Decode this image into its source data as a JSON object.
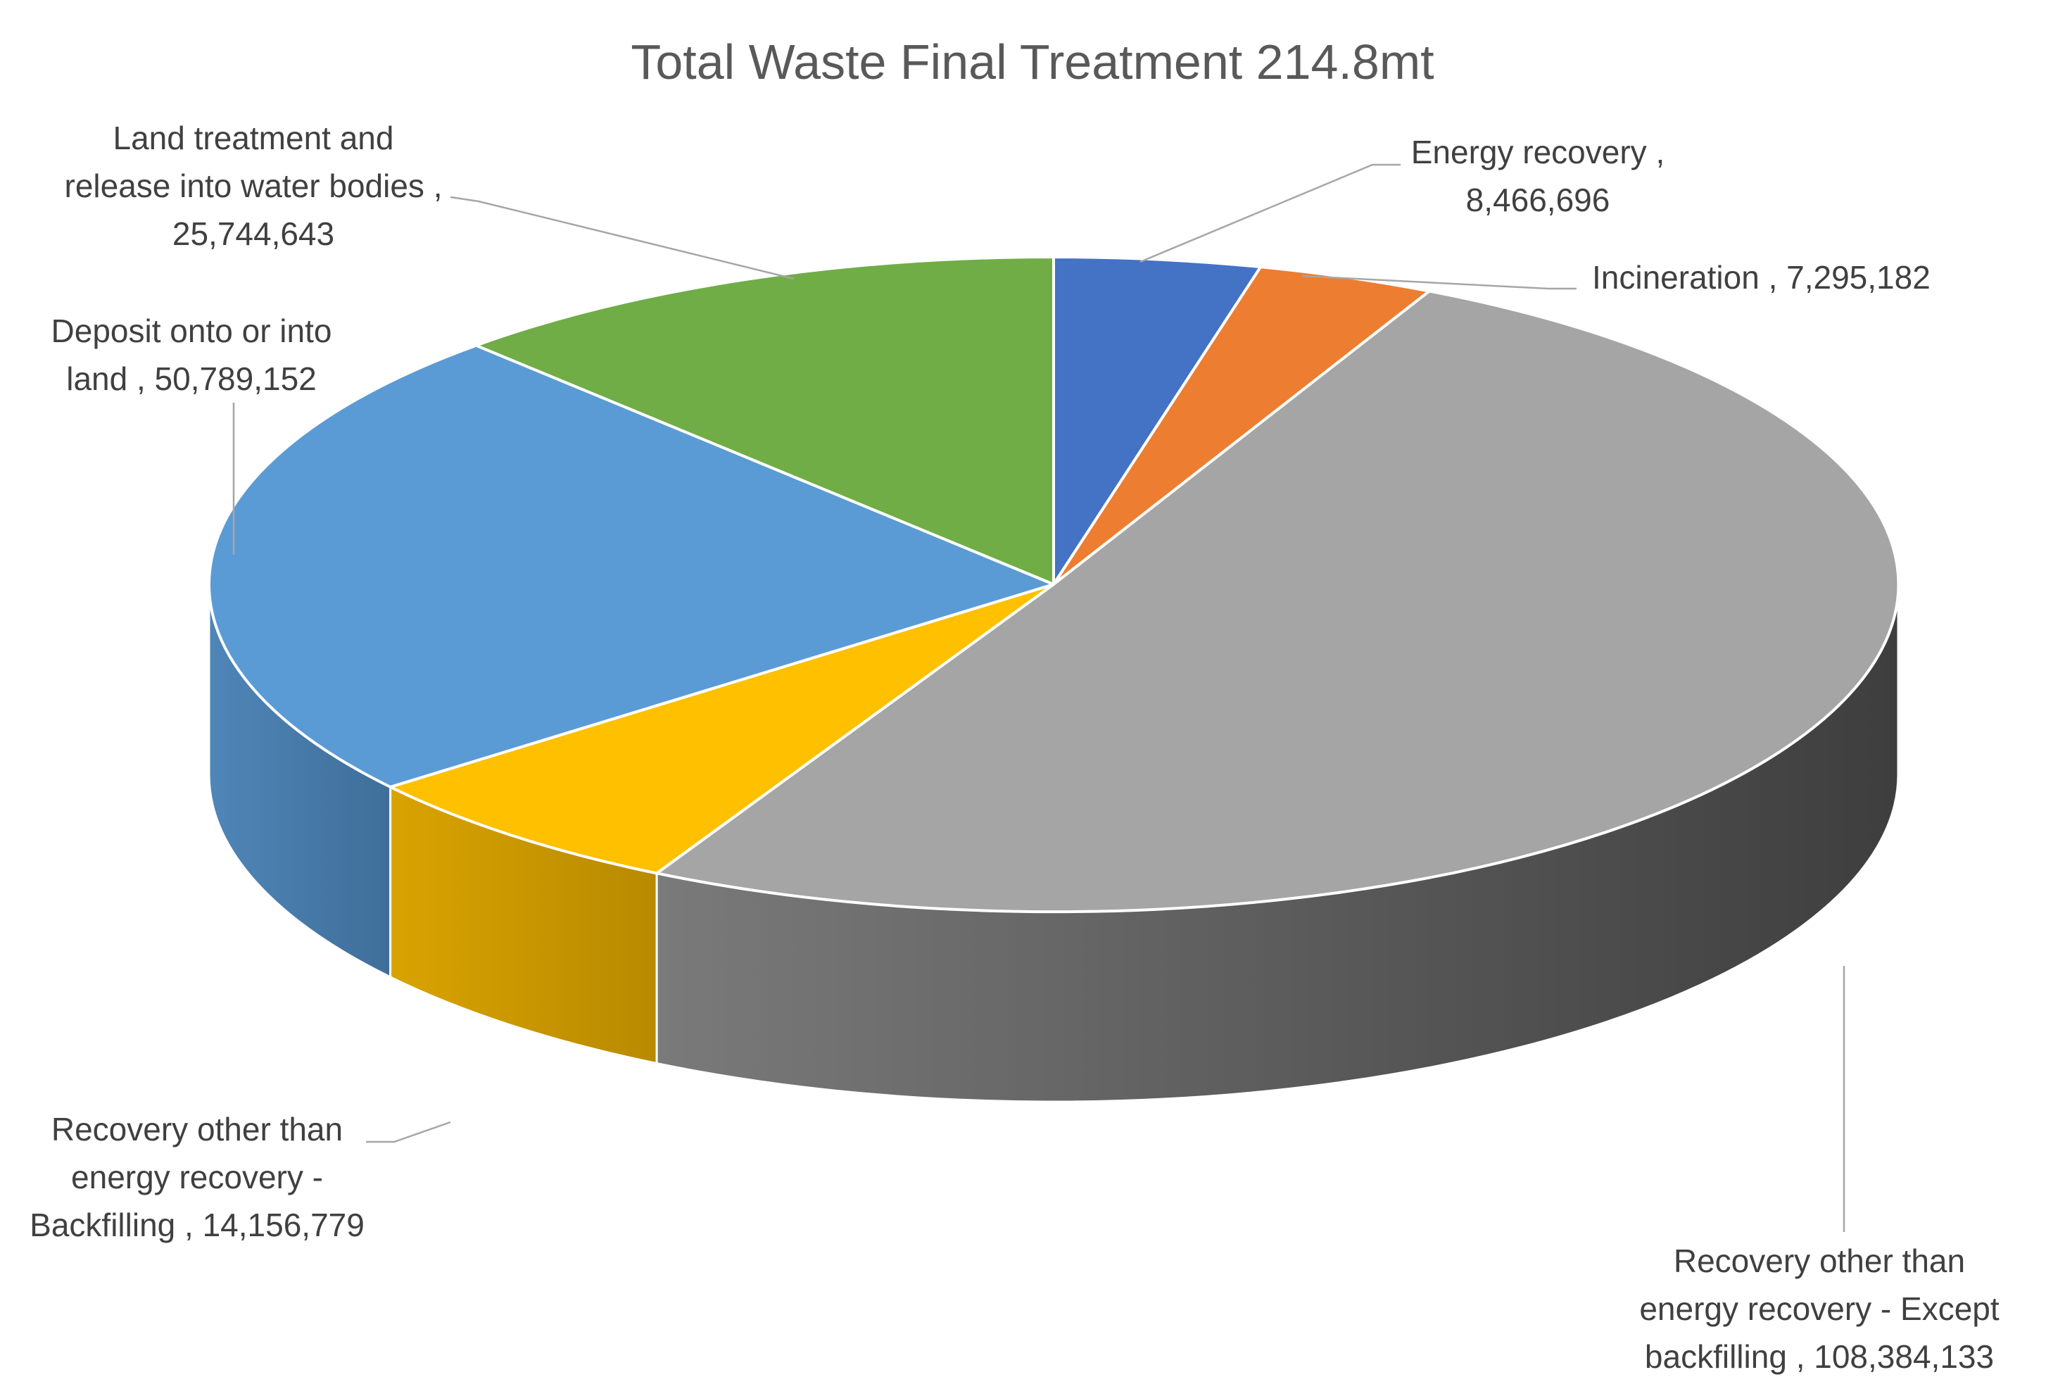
{
  "chart_data": {
    "type": "pie",
    "title": "Total Waste Final Treatment 214.8mt",
    "slices": [
      {
        "id": "energy-recovery",
        "label_lines": [
          "Energy recovery ,",
          "8,466,696"
        ],
        "value": 8466696,
        "color": "#4472C4",
        "side_color_light": "#3A64AE",
        "side_color_dark": "#2C4C87",
        "label_anchor": "middle"
      },
      {
        "id": "incineration",
        "label_lines": [
          "Incineration , 7,295,182"
        ],
        "value": 7295182,
        "color": "#ED7D31",
        "side_color_light": "#CC6A28",
        "side_color_dark": "#A2531F",
        "label_anchor": "start"
      },
      {
        "id": "recovery-except-backfilling",
        "label_lines": [
          "Recovery other than",
          "energy recovery - Except",
          "backfilling , 108,384,133"
        ],
        "value": 108384133,
        "color": "#A5A5A5",
        "side_color_light": "#7A7A7A",
        "side_color_dark": "#3E3E3E",
        "label_anchor": "middle"
      },
      {
        "id": "recovery-backfilling",
        "label_lines": [
          "Recovery other than",
          "energy recovery -",
          "Backfilling , 14,156,779"
        ],
        "value": 14156779,
        "color": "#FFC000",
        "side_color_light": "#D9A300",
        "side_color_dark": "#B88A00",
        "label_anchor": "middle"
      },
      {
        "id": "deposit-onto-land",
        "label_lines": [
          "Deposit onto or into",
          "land , 50,789,152"
        ],
        "value": 50789152,
        "color": "#5B9BD5",
        "side_color_light": "#4F86B8",
        "side_color_dark": "#3F6E99",
        "label_anchor": "middle"
      },
      {
        "id": "land-treatment-water",
        "label_lines": [
          "Land treatment and",
          "release into water bodies ,",
          "25,744,643"
        ],
        "value": 25744643,
        "color": "#70AD47",
        "side_color_light": "#5E9439",
        "side_color_dark": "#4A752D",
        "label_anchor": "middle"
      }
    ],
    "start_angle_deg": -90,
    "direction": "clockwise",
    "style": "3d",
    "legend": "none"
  }
}
